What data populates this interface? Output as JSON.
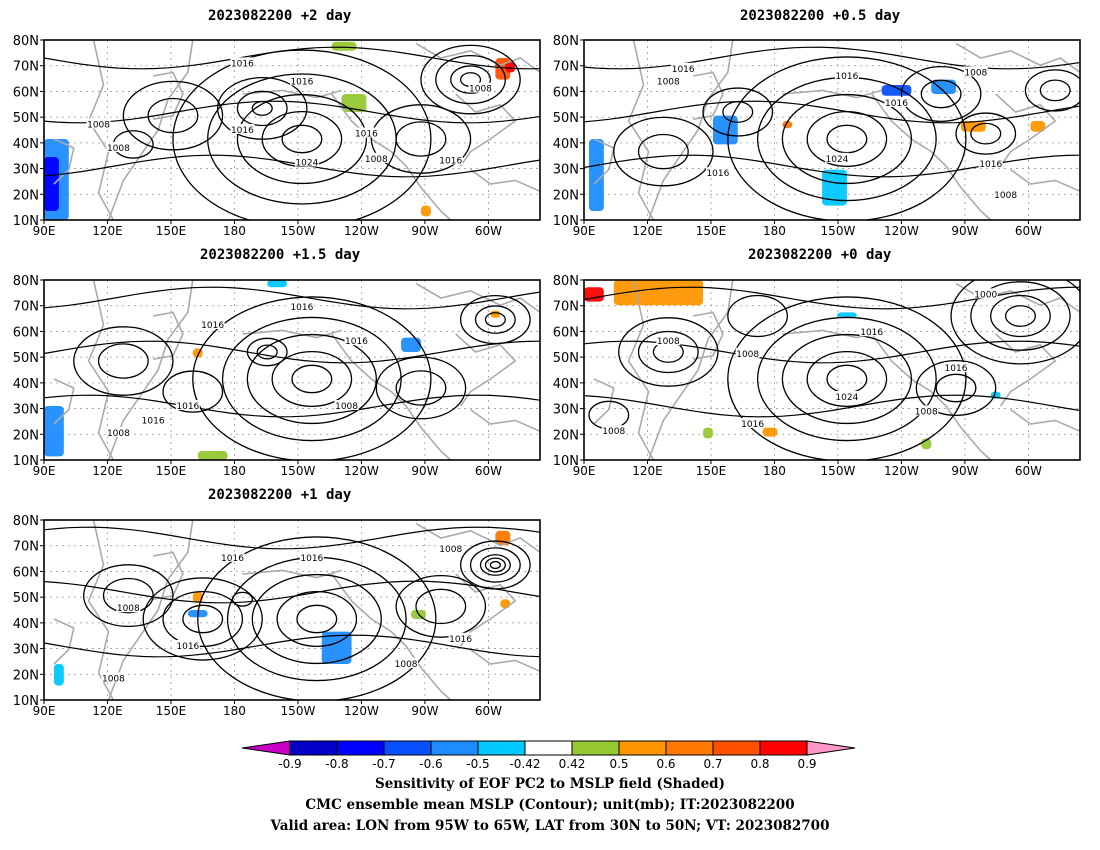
{
  "panels": [
    {
      "id": "p_plus2",
      "title": "2023082200 +2 day",
      "contour_labels": [
        "1016",
        "1016",
        "1008",
        "1008",
        "1016",
        "1008",
        "1024",
        "1016",
        "1008",
        "1016"
      ]
    },
    {
      "id": "p_plus05",
      "title": "2023082200 +0.5 day",
      "contour_labels": [
        "1016",
        "1008",
        "1016",
        "1008",
        "1016",
        "1024",
        "1016",
        "1016",
        "1008"
      ]
    },
    {
      "id": "p_plus15",
      "title": "2023082200 +1.5 day",
      "contour_labels": [
        "1016",
        "1016",
        "1016",
        "1016",
        "1008",
        "1016",
        "1008"
      ]
    },
    {
      "id": "p_plus0",
      "title": "2023082200 +0 day",
      "contour_labels": [
        "1000",
        "1016",
        "1008",
        "1008",
        "1016",
        "1024",
        "1016",
        "1008",
        "1008"
      ]
    },
    {
      "id": "p_plus1",
      "title": "2023082200 +1 day",
      "contour_labels": [
        "1008",
        "1016",
        "1016",
        "1008",
        "1016",
        "1016",
        "1008",
        "1008"
      ]
    }
  ],
  "lat_ticks": [
    "10N",
    "20N",
    "30N",
    "40N",
    "50N",
    "60N",
    "70N",
    "80N"
  ],
  "lon_ticks": [
    "90E",
    "120E",
    "150E",
    "180",
    "150W",
    "120W",
    "90W",
    "60W"
  ],
  "colorbar": {
    "tick_labels": [
      "-0.9",
      "-0.8",
      "-0.7",
      "-0.6",
      "-0.5",
      "-0.42",
      "0.42",
      "0.5",
      "0.6",
      "0.7",
      "0.8",
      "0.9"
    ],
    "colors": {
      "below": "#c800c8",
      "neg1": "#0000c8",
      "neg2": "#0000ff",
      "neg3": "#0a50ff",
      "neg4": "#1e8cff",
      "neg5": "#00c8ff",
      "neutral": "#ffffff",
      "pos1": "#96c832",
      "pos2": "#ff9600",
      "pos3": "#ff7800",
      "pos4": "#ff5000",
      "pos5": "#ff0000",
      "above": "#ff96c8"
    }
  },
  "footer": {
    "line1": "Sensitivity of EOF PC2 to MSLP field (Shaded)",
    "line2": "CMC ensemble mean MSLP (Contour); unit(mb); IT:2023082200",
    "line3": "Valid area: LON from 95W to 65W, LAT from 30N to 50N; VT: 2023082700"
  }
}
